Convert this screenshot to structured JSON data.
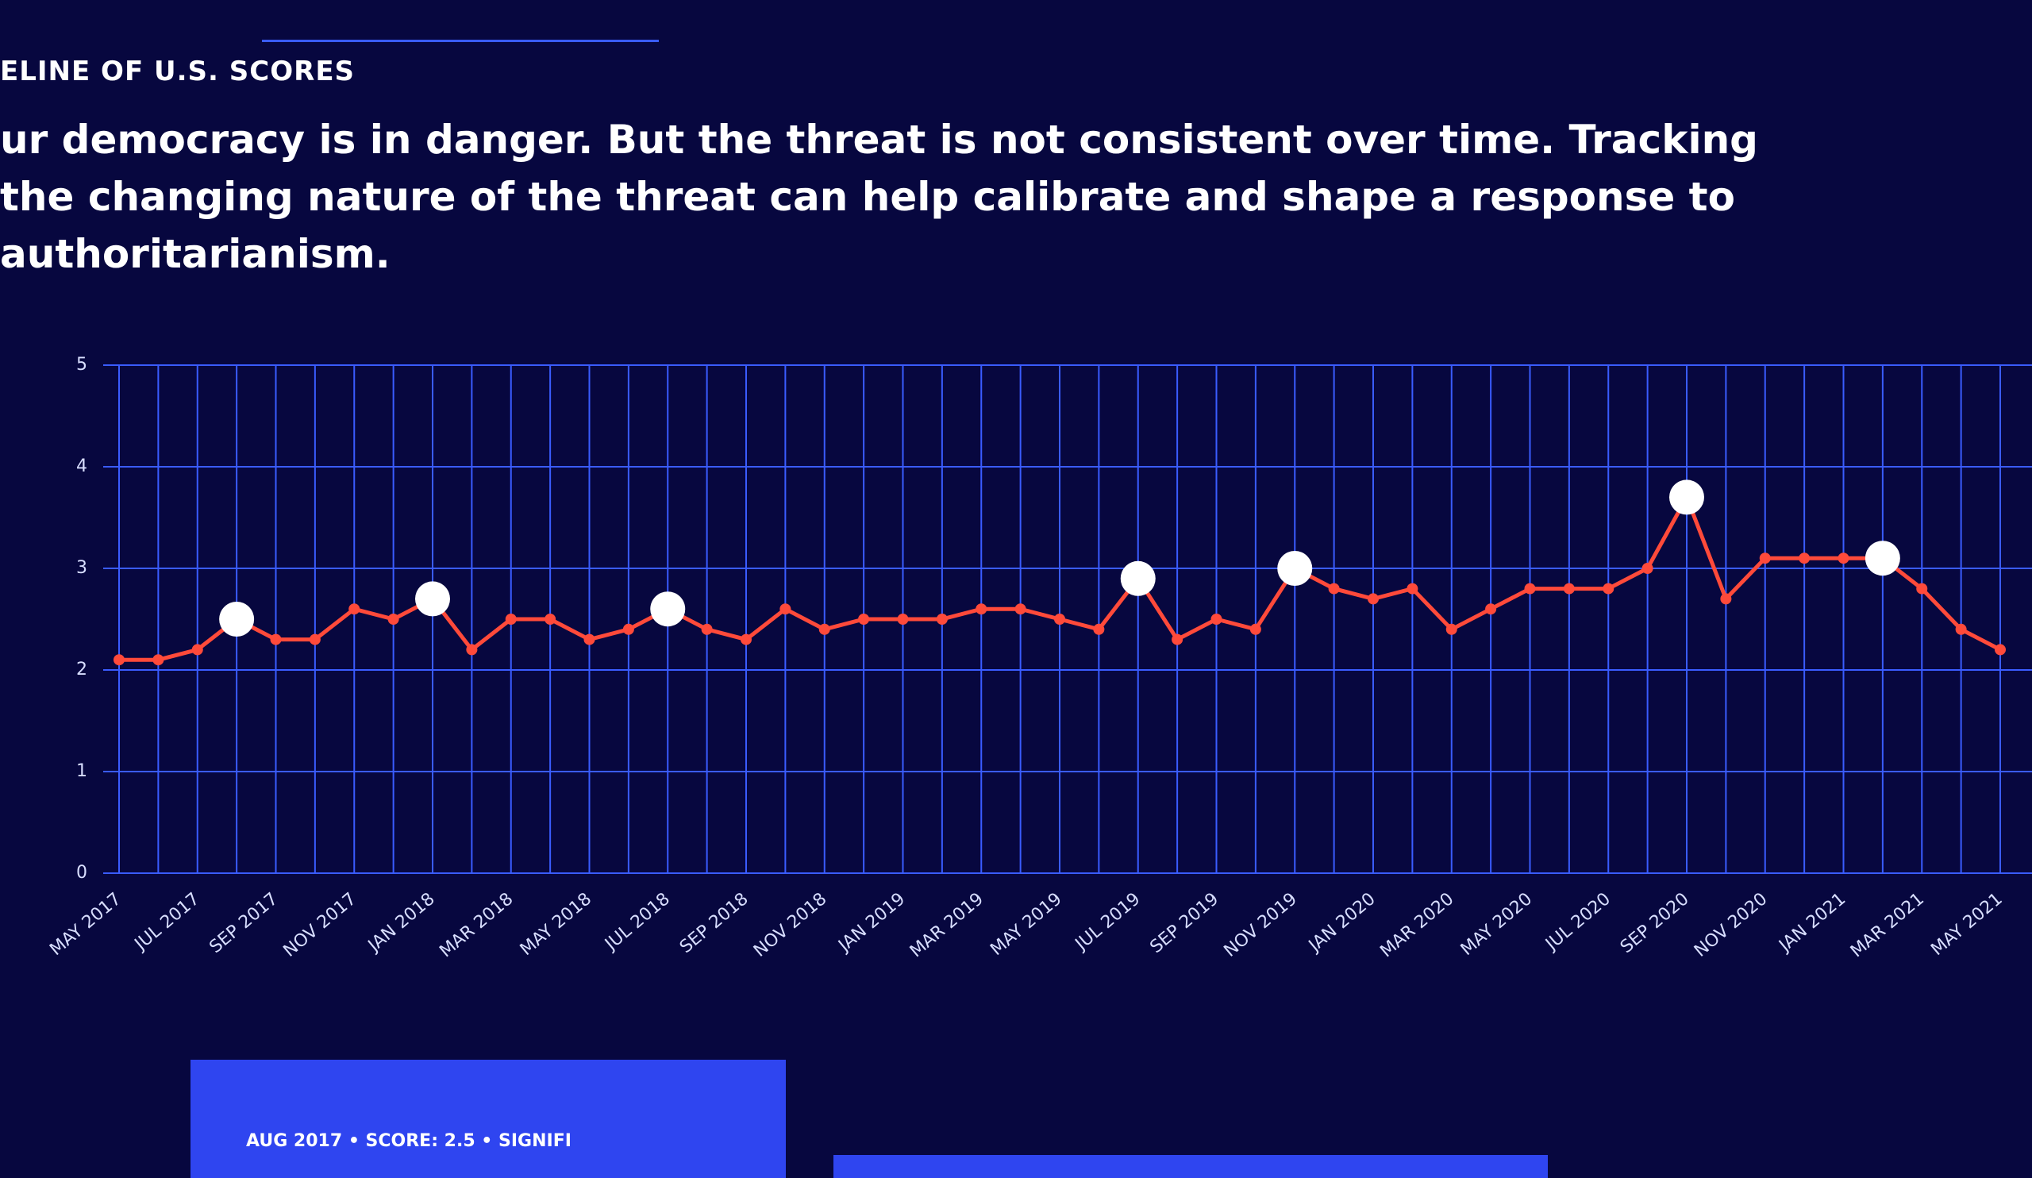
{
  "header": {
    "section": "ELINE OF U.S. SCORES",
    "description": "ur democracy is in danger. But the threat is not consistent over time. Tracking the changing nature of the threat can help calibrate and shape a response to authoritarianism."
  },
  "chart_data": {
    "type": "line",
    "categories": [
      "MAY 2017",
      null,
      "JUL 2017",
      null,
      "SEP 2017",
      null,
      "NOV 2017",
      null,
      "JAN 2018",
      null,
      "MAR 2018",
      null,
      "MAY 2018",
      null,
      "JUL 2018",
      null,
      "SEP 2018",
      null,
      "NOV 2018",
      null,
      "JAN 2019",
      null,
      "MAR 2019",
      null,
      "MAY 2019",
      null,
      "JUL 2019",
      null,
      "SEP 2019",
      null,
      "NOV 2019",
      null,
      "JAN 2020",
      null,
      "MAR 2020",
      null,
      "MAY 2020",
      null,
      "JUL 2020",
      null,
      "SEP 2020",
      null,
      "NOV 2020",
      null,
      "JAN 2021",
      null,
      "MAR 2021",
      null,
      "MAY 2021"
    ],
    "series": [
      {
        "color": "#ff4a3a",
        "values": [
          2.1,
          2.1,
          2.2,
          2.5,
          2.3,
          2.3,
          2.6,
          2.5,
          2.7,
          2.2,
          2.5,
          2.5,
          2.3,
          2.4,
          2.6,
          2.4,
          2.3,
          2.6,
          2.4,
          2.5,
          2.5,
          2.5,
          2.6,
          2.6,
          2.5,
          2.4,
          2.9,
          2.3,
          2.5,
          2.4,
          3.0,
          2.8,
          2.7,
          2.8,
          2.4,
          2.6,
          2.8,
          2.8,
          2.8,
          3.0,
          3.7,
          2.7,
          3.1,
          3.1,
          3.1,
          3.1,
          2.8,
          2.4,
          2.2
        ],
        "highlighted": [
          false,
          false,
          false,
          true,
          false,
          false,
          false,
          false,
          true,
          false,
          false,
          false,
          false,
          false,
          true,
          false,
          false,
          false,
          false,
          false,
          false,
          false,
          false,
          false,
          false,
          false,
          true,
          false,
          false,
          false,
          true,
          false,
          false,
          false,
          false,
          false,
          false,
          false,
          false,
          false,
          true,
          false,
          false,
          false,
          false,
          true,
          false,
          false,
          false
        ]
      }
    ],
    "ylim": [
      0,
      5
    ],
    "yticks": [
      0,
      1,
      2,
      3,
      4,
      5
    ],
    "grid": true,
    "grid_color": "#3a5cff",
    "highlight_color": "#ffffff"
  },
  "card": {
    "text": "AUG 2017 • SCORE: 2.5 • SIGNIFI"
  }
}
